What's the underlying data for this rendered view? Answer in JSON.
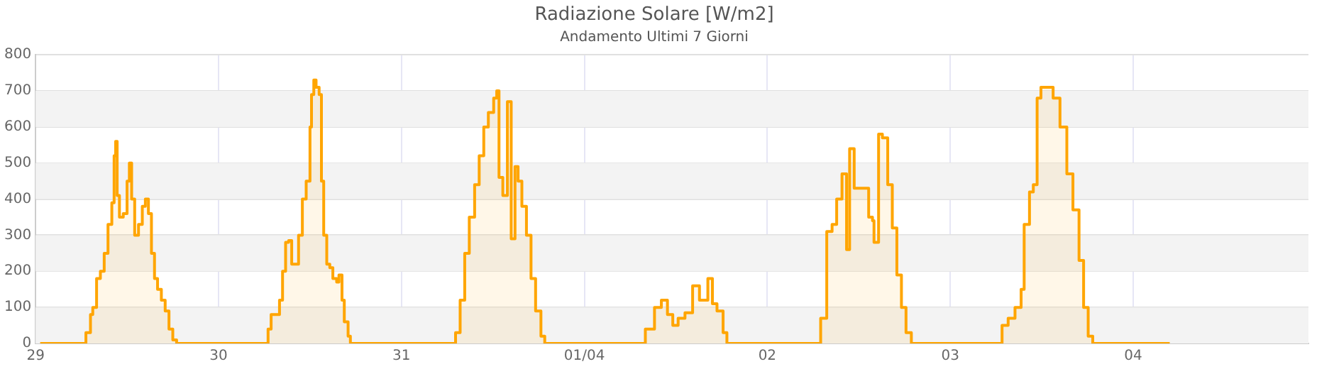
{
  "chart_data": {
    "type": "step",
    "title": "Radiazione Solare [W/m2]",
    "subtitle": "Andamento Ultimi 7 Giorni",
    "xlim": [
      "--03-29",
      "--04-04T23:00"
    ],
    "xticks": [
      {
        "value": "--03-29",
        "label": "29"
      },
      {
        "value": "--03-30",
        "label": "30"
      },
      {
        "value": "--03-31",
        "label": "31"
      },
      {
        "value": "--04-01",
        "label": "01/04"
      },
      {
        "value": "--04-02",
        "label": "02"
      },
      {
        "value": "--04-03",
        "label": "03"
      },
      {
        "value": "--04-04",
        "label": "04"
      }
    ],
    "ylim": [
      0,
      800
    ],
    "yticks": [
      0,
      100,
      200,
      300,
      400,
      500,
      600,
      700,
      800
    ],
    "grid": true,
    "legend": false,
    "series": [
      {
        "color": "#ffa500",
        "x": [
          "--03-29T00:36",
          "--03-29T06:00",
          "--03-29T06:36",
          "--03-29T07:12",
          "--03-29T07:30",
          "--03-29T08:00",
          "--03-29T08:30",
          "--03-29T09:00",
          "--03-29T09:30",
          "--03-29T10:00",
          "--03-29T10:18",
          "--03-29T10:30",
          "--03-29T10:42",
          "--03-29T11:00",
          "--03-29T11:30",
          "--03-29T12:00",
          "--03-29T12:18",
          "--03-29T12:36",
          "--03-29T13:00",
          "--03-29T13:30",
          "--03-29T14:00",
          "--03-29T14:24",
          "--03-29T14:48",
          "--03-29T15:12",
          "--03-29T15:36",
          "--03-29T16:00",
          "--03-29T16:30",
          "--03-29T17:00",
          "--03-29T17:30",
          "--03-29T18:00",
          "--03-29T18:30",
          "--03-30T06:12",
          "--03-30T06:30",
          "--03-30T06:54",
          "--03-30T07:36",
          "--03-30T08:00",
          "--03-30T08:24",
          "--03-30T08:48",
          "--03-30T09:12",
          "--03-30T09:36",
          "--03-30T10:00",
          "--03-30T10:30",
          "--03-30T11:00",
          "--03-30T11:30",
          "--03-30T12:00",
          "--03-30T12:12",
          "--03-30T12:30",
          "--03-30T12:48",
          "--03-30T13:12",
          "--03-30T13:30",
          "--03-30T13:48",
          "--03-30T14:12",
          "--03-30T14:36",
          "--03-30T15:00",
          "--03-30T15:30",
          "--03-30T15:48",
          "--03-30T16:12",
          "--03-30T16:30",
          "--03-30T17:00",
          "--03-30T17:18",
          "--03-31T06:30",
          "--03-31T07:06",
          "--03-31T07:42",
          "--03-31T08:18",
          "--03-31T08:54",
          "--03-31T09:36",
          "--03-31T10:12",
          "--03-31T10:48",
          "--03-31T11:24",
          "--03-31T12:06",
          "--03-31T12:30",
          "--03-31T12:48",
          "--03-31T13:18",
          "--03-31T13:54",
          "--03-31T14:24",
          "--03-31T14:54",
          "--03-31T15:18",
          "--03-31T15:48",
          "--03-31T16:24",
          "--03-31T17:00",
          "--03-31T17:36",
          "--03-31T18:18",
          "--03-31T18:48",
          "--04-01T06:42",
          "--04-01T08:00",
          "--04-01T09:12",
          "--04-01T10:06",
          "--04-01T10:54",
          "--04-01T11:36",
          "--04-01T12:18",
          "--04-01T13:12",
          "--04-01T14:12",
          "--04-01T15:06",
          "--04-01T16:12",
          "--04-01T16:48",
          "--04-01T17:24",
          "--04-01T18:12",
          "--04-01T18:42",
          "--04-02T06:00",
          "--04-02T07:00",
          "--04-02T07:48",
          "--04-02T08:30",
          "--04-02T09:06",
          "--04-02T09:48",
          "--04-02T10:24",
          "--04-02T10:48",
          "--04-02T11:24",
          "--04-02T12:24",
          "--04-02T13:18",
          "--04-02T13:48",
          "--04-02T14:00",
          "--04-02T14:36",
          "--04-02T15:06",
          "--04-02T15:48",
          "--04-02T16:24",
          "--04-02T17:00",
          "--04-02T17:36",
          "--04-02T18:12",
          "--04-02T18:54",
          "--04-03T06:18",
          "--04-03T06:48",
          "--04-03T07:36",
          "--04-03T08:30",
          "--04-03T09:18",
          "--04-03T09:42",
          "--04-03T10:24",
          "--04-03T10:54",
          "--04-03T11:24",
          "--04-03T11:54",
          "--04-03T12:42",
          "--04-03T13:30",
          "--04-03T14:24",
          "--04-03T15:18",
          "--04-03T16:06",
          "--04-03T16:54",
          "--04-03T17:30",
          "--04-03T18:06",
          "--04-03T18:42",
          "--04-04T04:48"
        ],
        "values": [
          0,
          0,
          30,
          80,
          100,
          180,
          200,
          250,
          330,
          390,
          520,
          560,
          410,
          350,
          360,
          450,
          500,
          400,
          300,
          330,
          380,
          400,
          360,
          250,
          180,
          150,
          120,
          90,
          40,
          10,
          0,
          0,
          40,
          80,
          80,
          120,
          200,
          280,
          285,
          220,
          220,
          300,
          400,
          450,
          600,
          690,
          730,
          710,
          690,
          450,
          300,
          220,
          210,
          180,
          170,
          190,
          120,
          60,
          20,
          0,
          0,
          30,
          120,
          250,
          350,
          440,
          520,
          600,
          640,
          680,
          700,
          460,
          410,
          670,
          290,
          490,
          450,
          380,
          300,
          180,
          90,
          20,
          0,
          0,
          40,
          100,
          120,
          80,
          50,
          70,
          85,
          160,
          120,
          180,
          110,
          90,
          30,
          0,
          0,
          70,
          310,
          330,
          400,
          470,
          260,
          540,
          430,
          430,
          350,
          340,
          280,
          580,
          570,
          440,
          320,
          190,
          100,
          30,
          0,
          0,
          50,
          70,
          100,
          150,
          330,
          420,
          440,
          680,
          710,
          710,
          680,
          600,
          470,
          370,
          230,
          100,
          20,
          0,
          0
        ]
      }
    ]
  }
}
